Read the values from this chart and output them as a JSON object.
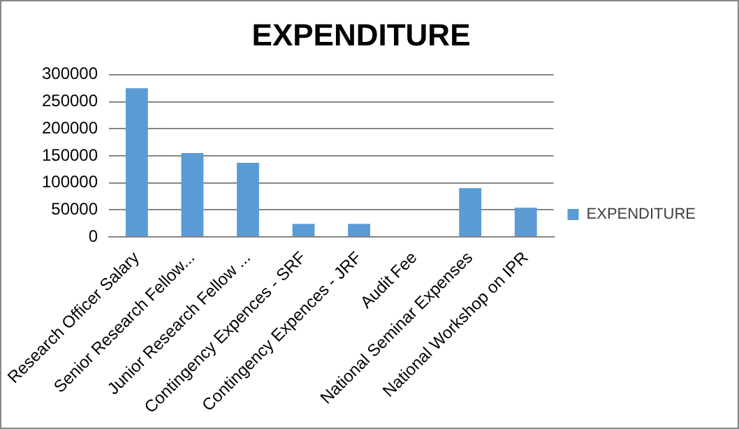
{
  "chart_data": {
    "type": "bar",
    "title": "EXPENDITURE",
    "categories": [
      "Research Officer Salary",
      "Senior Research Fellow...",
      "Junior Research Fellow ...",
      "Contingency Expences - SRF",
      "Contingency Expences - JRF",
      "Audit Fee",
      "National Seminar Expenses",
      "National Workshop on IPR"
    ],
    "series": [
      {
        "name": "EXPENDITURE",
        "color": "#5b9bd5",
        "values": [
          275000,
          155000,
          137000,
          24000,
          24000,
          0,
          90000,
          54000
        ]
      }
    ],
    "ylim": [
      0,
      300000
    ],
    "yticks": [
      0,
      50000,
      100000,
      150000,
      200000,
      250000,
      300000
    ],
    "grid": "y",
    "legend": "right"
  }
}
